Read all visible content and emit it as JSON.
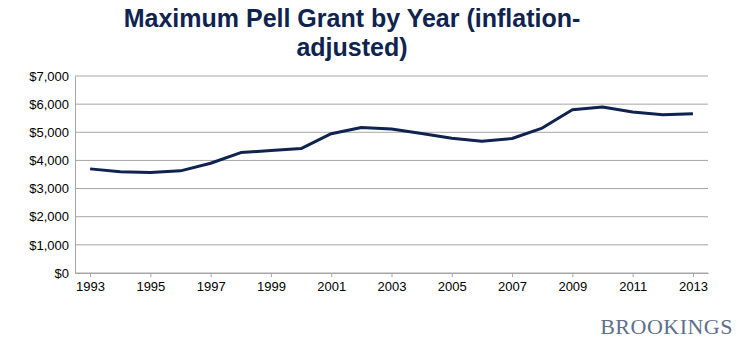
{
  "chart_data": {
    "type": "line",
    "title": "Maximum Pell Grant by Year (inflation-adjusted)",
    "x": [
      1993,
      1994,
      1995,
      1996,
      1997,
      1998,
      1999,
      2000,
      2001,
      2002,
      2003,
      2004,
      2005,
      2006,
      2007,
      2008,
      2009,
      2010,
      2011,
      2012,
      2013
    ],
    "values": [
      3700,
      3600,
      3570,
      3630,
      3900,
      4280,
      4350,
      4420,
      4950,
      5170,
      5120,
      4960,
      4790,
      4680,
      4780,
      5150,
      5800,
      5900,
      5720,
      5620,
      5660
    ],
    "color": "#0f2350",
    "xlim": [
      1992.5,
      2013.5
    ],
    "xticks": [
      1993,
      1995,
      1997,
      1999,
      2001,
      2003,
      2005,
      2007,
      2009,
      2011,
      2013
    ],
    "ylim": [
      0,
      7000
    ],
    "yticks": [
      {
        "value": 0,
        "label": "$0"
      },
      {
        "value": 1000,
        "label": "$1,000"
      },
      {
        "value": 2000,
        "label": "$2,000"
      },
      {
        "value": 3000,
        "label": "$3,000"
      },
      {
        "value": 4000,
        "label": "$4,000"
      },
      {
        "value": 5000,
        "label": "$5,000"
      },
      {
        "value": 6000,
        "label": "$6,000"
      },
      {
        "value": 7000,
        "label": "$7,000"
      }
    ],
    "grid": true,
    "annotations": [
      "BROOKINGS"
    ]
  }
}
